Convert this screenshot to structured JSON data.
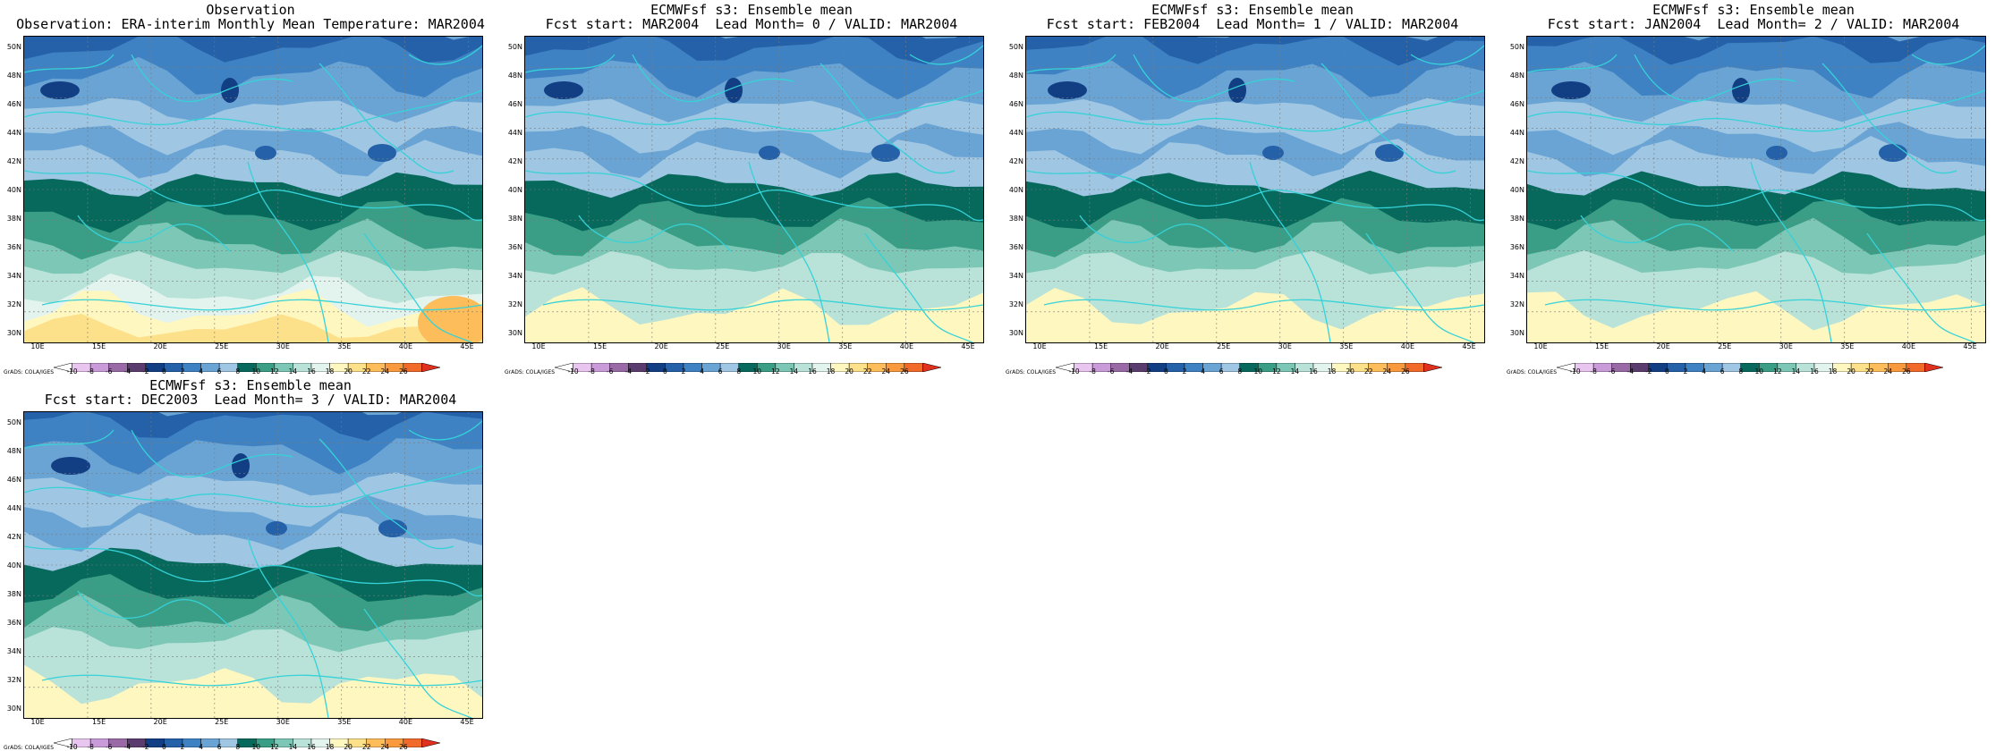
{
  "panels": [
    {
      "title_line1": "Observation",
      "title_line2": "Observation: ERA-interim Monthly Mean Temperature: MAR2004",
      "variant": 0
    },
    {
      "title_line1": "ECMWFsf s3: Ensemble mean",
      "title_line2": "Fcst start: MAR2004  Lead Month= 0 / VALID: MAR2004",
      "variant": 1
    },
    {
      "title_line1": "ECMWFsf s3: Ensemble mean",
      "title_line2": "Fcst start: FEB2004  Lead Month= 1 / VALID: MAR2004",
      "variant": 2
    },
    {
      "title_line1": "ECMWFsf s3: Ensemble mean",
      "title_line2": "Fcst start: JAN2004  Lead Month= 2 / VALID: MAR2004",
      "variant": 3
    },
    {
      "title_line1": "ECMWFsf s3: Ensemble mean",
      "title_line2": "Fcst start: DEC2003  Lead Month= 3 / VALID: MAR2004",
      "variant": 4
    }
  ],
  "lat_labels": [
    "50N",
    "48N",
    "46N",
    "44N",
    "42N",
    "40N",
    "38N",
    "36N",
    "34N",
    "32N",
    "30N"
  ],
  "lon_labels": [
    "10E",
    "15E",
    "20E",
    "25E",
    "30E",
    "35E",
    "40E",
    "45E"
  ],
  "colorbar_labels": [
    "-10",
    "-8",
    "-6",
    "-4",
    "-2",
    "0",
    "2",
    "4",
    "6",
    "8",
    "10",
    "12",
    "14",
    "16",
    "18",
    "20",
    "22",
    "24",
    "26"
  ],
  "colorbar_colors": [
    "#ffffff",
    "#e9c6ef",
    "#c99bd8",
    "#9a6aa6",
    "#5a3d6e",
    "#123e83",
    "#2461a8",
    "#3f82c4",
    "#6aa4d4",
    "#9fc6e2",
    "#06695c",
    "#3a9e86",
    "#7cc7b6",
    "#b9e3d9",
    "#e3f3ee",
    "#fff7c0",
    "#fde08a",
    "#fcbd5a",
    "#f99a3e",
    "#f26a2a",
    "#e0301e"
  ],
  "credit": "GrADS: COLA/IGES",
  "colors": {
    "coast": "#35d2d8",
    "grid": "#7a7a7a"
  }
}
